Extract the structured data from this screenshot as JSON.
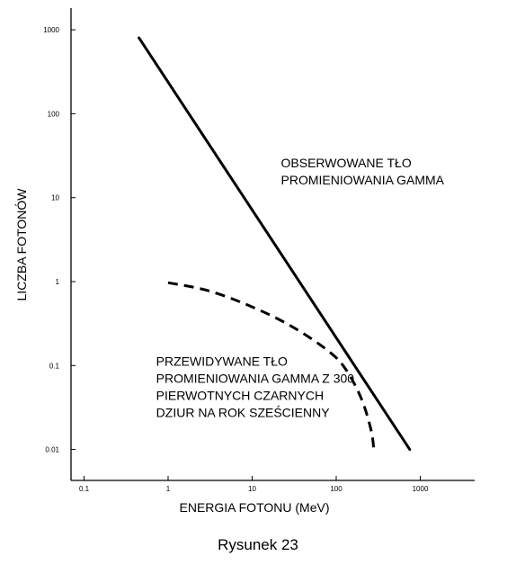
{
  "caption": "Rysunek 23",
  "chart_data": {
    "type": "line",
    "title": "",
    "xlabel": "ENERGIA FOTONU (MeV)",
    "ylabel": "LICZBA FOTONÓW",
    "xscale": "log",
    "yscale": "log",
    "xlim": [
      0.05,
      5000
    ],
    "ylim": [
      0.005,
      2000
    ],
    "grid": false,
    "x_ticks": [
      {
        "value": 0.1,
        "label": "0.1"
      },
      {
        "value": 1,
        "label": "1"
      },
      {
        "value": 10,
        "label": "10"
      },
      {
        "value": 100,
        "label": "100"
      },
      {
        "value": 1000,
        "label": "1000"
      }
    ],
    "y_ticks": [
      {
        "value": 0.01,
        "label": "0.01"
      },
      {
        "value": 0.1,
        "label": "0.1"
      },
      {
        "value": 1,
        "label": "1"
      },
      {
        "value": 10,
        "label": "10"
      },
      {
        "value": 100,
        "label": "100"
      },
      {
        "value": 1000,
        "label": "1000"
      }
    ],
    "series": [
      {
        "style": "solid",
        "color": "#000000",
        "points": [
          {
            "x": 0.45,
            "y": 800
          },
          {
            "x": 750,
            "y": 0.01
          }
        ]
      },
      {
        "style": "dashed",
        "color": "#000000",
        "points": [
          {
            "x": 1,
            "y": 0.97
          },
          {
            "x": 3,
            "y": 0.78
          },
          {
            "x": 10,
            "y": 0.5
          },
          {
            "x": 30,
            "y": 0.29
          },
          {
            "x": 80,
            "y": 0.15
          },
          {
            "x": 130,
            "y": 0.09
          },
          {
            "x": 200,
            "y": 0.04
          },
          {
            "x": 260,
            "y": 0.017
          },
          {
            "x": 280,
            "y": 0.01
          }
        ]
      }
    ],
    "annotations": [
      {
        "id": "observed",
        "lines": [
          "OBSERWOWANE TŁO",
          "PROMIENIOWANIA GAMMA"
        ],
        "anchor": {
          "x": 22,
          "y": 23
        }
      },
      {
        "id": "predicted",
        "lines": [
          "PRZEWIDYWANE TŁO",
          "PROMIENIOWANIA GAMMA Z 300",
          "PIERWOTNYCH CZARNYCH",
          "DZIUR NA ROK SZEŚCIENNY"
        ],
        "anchor": {
          "x": 0.72,
          "y": 0.1
        }
      }
    ]
  }
}
